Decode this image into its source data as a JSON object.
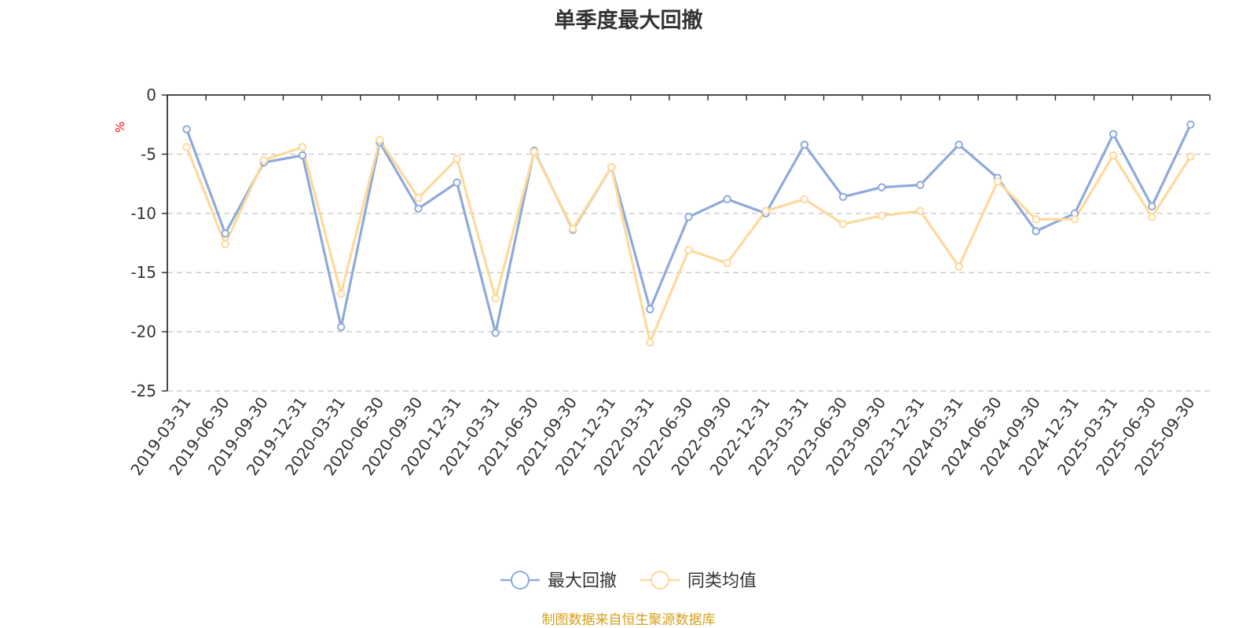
{
  "title": "单季度最大回撤",
  "source_note": "制图数据来自恒生聚源数据库",
  "colors": {
    "series1": "#8eaadb",
    "series2": "#fdd99b",
    "unit": "#ff0000",
    "grid": "#cccccc",
    "axis": "#333333",
    "text": "#333333",
    "source": "#d4a017"
  },
  "chart_data": {
    "type": "line",
    "title": "单季度最大回撤",
    "ylabel": "%",
    "xlabel": "",
    "ylim": [
      -25,
      0
    ],
    "yticks": [
      0,
      -5,
      -10,
      -15,
      -20,
      -25
    ],
    "grid": true,
    "legend_position": "bottom",
    "categories": [
      "2019-03-31",
      "2019-06-30",
      "2019-09-30",
      "2019-12-31",
      "2020-03-31",
      "2020-06-30",
      "2020-09-30",
      "2020-12-31",
      "2021-03-31",
      "2021-06-30",
      "2021-09-30",
      "2021-12-31",
      "2022-03-31",
      "2022-06-30",
      "2022-09-30",
      "2022-12-31",
      "2023-03-31",
      "2023-06-30",
      "2023-09-30",
      "2023-12-31",
      "2024-03-31",
      "2024-06-30",
      "2024-09-30",
      "2024-12-31",
      "2025-03-31",
      "2025-06-30",
      "2025-09-30"
    ],
    "series": [
      {
        "name": "最大回撤",
        "values": [
          -2.9,
          -11.7,
          -5.7,
          -5.1,
          -19.6,
          -4.0,
          -9.6,
          -7.4,
          -20.1,
          -4.7,
          -11.4,
          -6.1,
          -18.1,
          -10.3,
          -8.8,
          -10.0,
          -4.2,
          -8.6,
          -7.8,
          -7.6,
          -4.2,
          -7.0,
          -11.5,
          -10.0,
          -3.3,
          -9.4,
          -2.5
        ]
      },
      {
        "name": "同类均值",
        "values": [
          -4.4,
          -12.6,
          -5.5,
          -4.4,
          -16.8,
          -3.8,
          -8.7,
          -5.4,
          -17.2,
          -4.8,
          -11.3,
          -6.1,
          -20.9,
          -13.1,
          -14.2,
          -9.8,
          -8.8,
          -10.9,
          -10.2,
          -9.8,
          -14.5,
          -7.3,
          -10.5,
          -10.5,
          -5.1,
          -10.3,
          -5.2
        ]
      }
    ]
  }
}
